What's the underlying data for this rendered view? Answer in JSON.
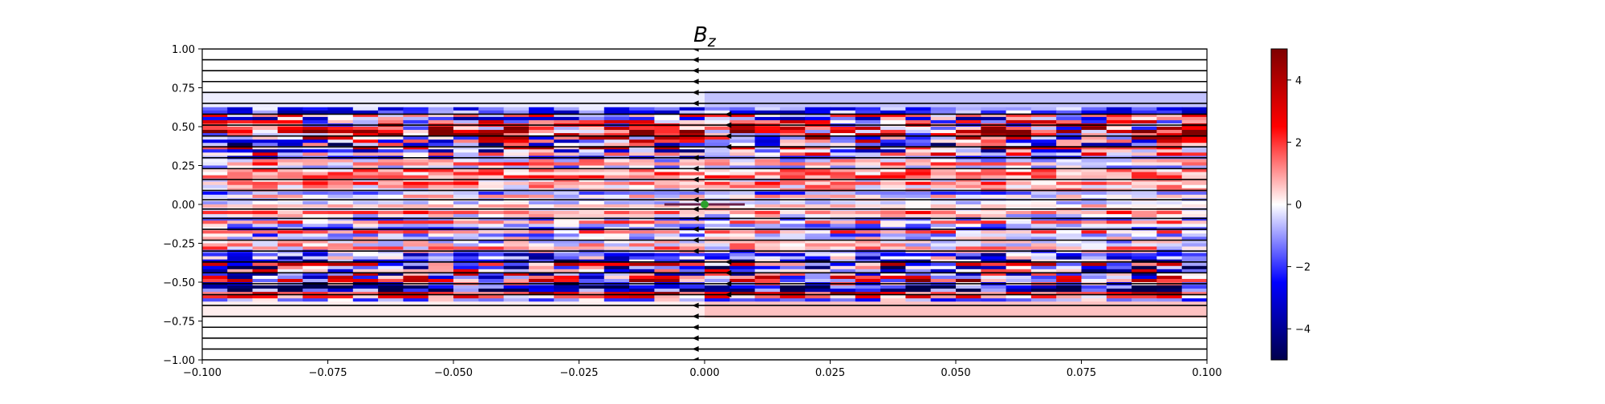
{
  "chart_data": {
    "type": "heatmap",
    "title": "B",
    "title_subscript": "z",
    "xlabel": "",
    "ylabel": "",
    "xlim": [
      -0.1,
      0.1
    ],
    "ylim": [
      -1.0,
      1.0
    ],
    "x_ticks": [
      -0.1,
      -0.075,
      -0.05,
      -0.025,
      0.0,
      0.025,
      0.05,
      0.075,
      0.1
    ],
    "x_tick_labels": [
      "−0.100",
      "−0.075",
      "−0.050",
      "−0.025",
      "0.000",
      "0.025",
      "0.050",
      "0.075",
      "0.100"
    ],
    "y_ticks": [
      1.0,
      0.75,
      0.5,
      0.25,
      0.0,
      -0.25,
      -0.5,
      -0.75,
      -1.0
    ],
    "y_tick_labels": [
      "1.00",
      "0.75",
      "0.50",
      "0.25",
      "0.00",
      "−0.25",
      "−0.50",
      "−0.75",
      "−1.00"
    ],
    "colorbar": {
      "range": [
        -5,
        5
      ],
      "ticks": [
        4,
        2,
        0,
        -2,
        -4
      ],
      "tick_labels": [
        "4",
        "2",
        "0",
        "−2",
        "−4"
      ],
      "colormap": "seismic",
      "colors": [
        "#00004c",
        "#0000ff",
        "#ffffff",
        "#ff0000",
        "#7f0000"
      ]
    },
    "field_lines_y": [
      1.0,
      0.93,
      0.86,
      0.79,
      0.72,
      0.65,
      0.58,
      0.51,
      0.44,
      0.37,
      0.3,
      0.23,
      0.16,
      0.09,
      0.03,
      -0.03,
      -0.09,
      -0.16,
      -0.23,
      -0.3,
      -0.37,
      -0.44,
      -0.51,
      -0.58,
      -0.65,
      -0.72,
      -0.79,
      -0.86,
      -0.93,
      -1.0
    ],
    "field_line_direction": "left",
    "marker": {
      "x": 0.0,
      "y": 0.0,
      "color": "#2ca02c"
    },
    "grid": false
  }
}
